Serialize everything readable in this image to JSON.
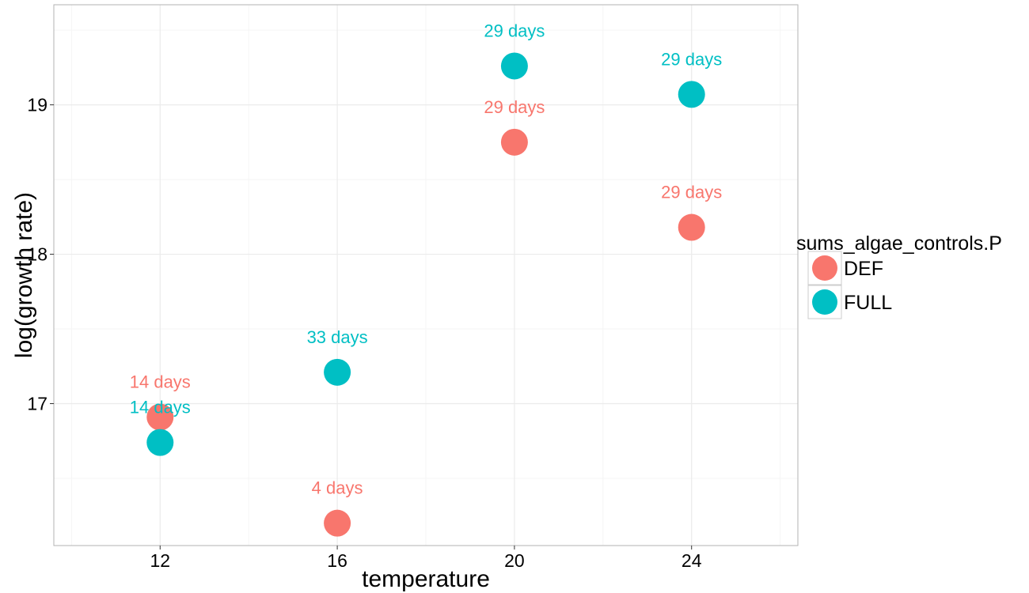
{
  "chart_data": {
    "type": "scatter",
    "xlabel": "temperature",
    "ylabel": "log(growth rate)",
    "xlim": [
      9.6,
      26.4
    ],
    "ylim": [
      16.05,
      19.67
    ],
    "x_ticks": [
      12,
      16,
      20,
      24
    ],
    "y_ticks": [
      17,
      18,
      19
    ],
    "grid": true,
    "legend": {
      "title": "sums_algae_controls.P",
      "placement": "right"
    },
    "series": [
      {
        "name": "DEF",
        "color": "#F8766D",
        "points": [
          {
            "x": 12,
            "y": 16.91,
            "label": "14 days"
          },
          {
            "x": 16,
            "y": 16.2,
            "label": "4 days"
          },
          {
            "x": 20,
            "y": 18.75,
            "label": "29 days"
          },
          {
            "x": 24,
            "y": 18.18,
            "label": "29 days"
          }
        ]
      },
      {
        "name": "FULL",
        "color": "#00BFC4",
        "points": [
          {
            "x": 12,
            "y": 16.74,
            "label": "14 days"
          },
          {
            "x": 16,
            "y": 17.21,
            "label": "33 days"
          },
          {
            "x": 20,
            "y": 19.26,
            "label": "29 days"
          },
          {
            "x": 24,
            "y": 19.07,
            "label": "29 days"
          }
        ]
      }
    ]
  }
}
